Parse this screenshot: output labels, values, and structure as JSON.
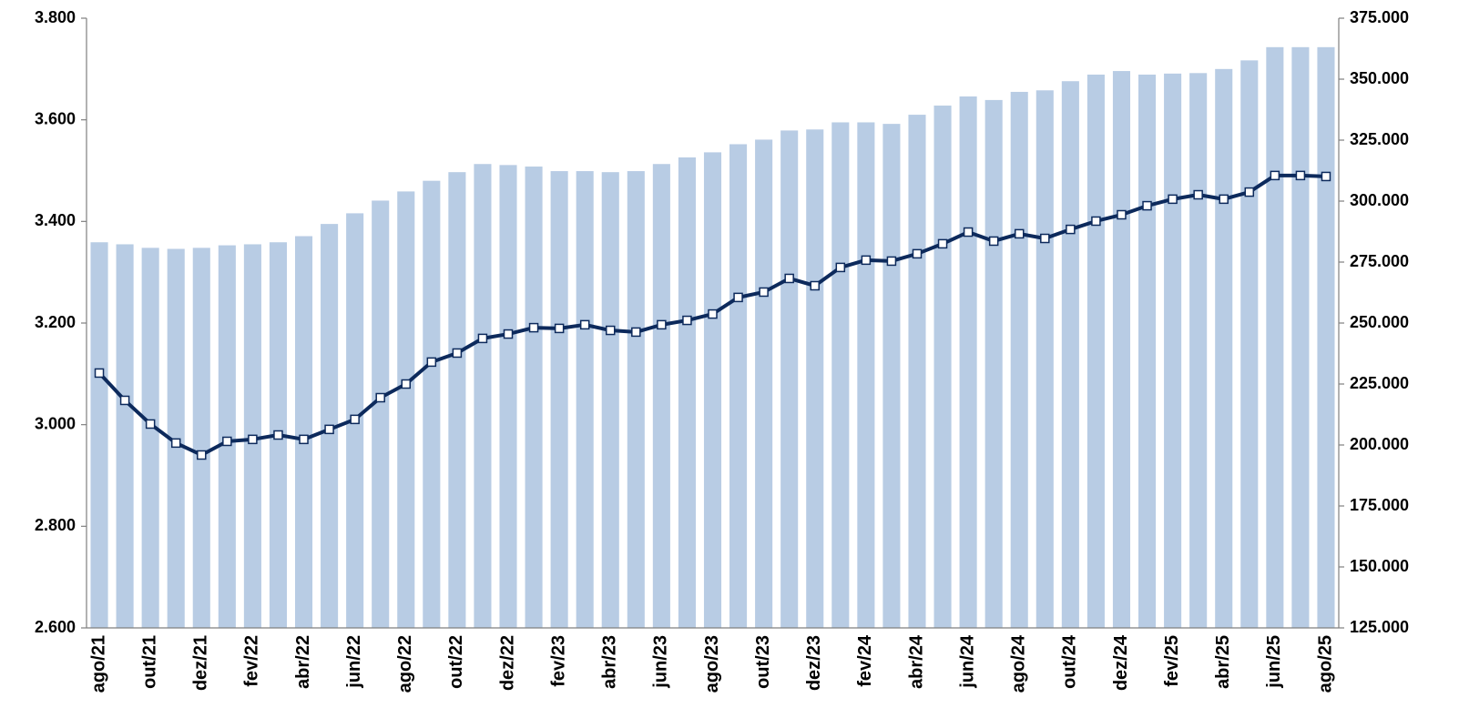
{
  "chart_data": {
    "type": "bar",
    "categories": [
      "ago/21",
      null,
      "out/21",
      null,
      "dez/21",
      null,
      "fev/22",
      null,
      "abr/22",
      null,
      "jun/22",
      null,
      "ago/22",
      null,
      "out/22",
      null,
      "dez/22",
      null,
      "fev/23",
      null,
      "abr/23",
      null,
      "jun/23",
      null,
      "ago/23",
      null,
      "out/23",
      null,
      "dez/23",
      null,
      "fev/24",
      null,
      "abr/24",
      null,
      "jun/24",
      null,
      "ago/24",
      null,
      "out/24",
      null,
      "dez/24",
      null,
      "fev/25",
      null,
      "abr/25",
      null,
      "jun/25",
      null,
      "ago/25"
    ],
    "series": [
      {
        "color": "#b8cce4",
        "values": [
          3359,
          3355,
          3348,
          3346,
          3348,
          3353,
          3355,
          3359,
          3371,
          3395,
          3416,
          3441,
          3459,
          3480,
          3497,
          3513,
          3511,
          3508,
          3499,
          3499,
          3497,
          3499,
          3513,
          3526,
          3536,
          3552,
          3561,
          3579,
          3581,
          3595,
          3595,
          3592,
          3610,
          3628,
          3646,
          3639,
          3655,
          3658,
          3676,
          3689,
          3696,
          3689,
          3691,
          3692,
          3700,
          3717,
          3743,
          3743,
          3743
        ]
      },
      {
        "type": "line",
        "axis": "y2",
        "color": "#0d2a5c",
        "values": [
          229500,
          218300,
          208600,
          200800,
          195900,
          201500,
          202300,
          204100,
          202300,
          206400,
          210500,
          219400,
          225000,
          234000,
          237700,
          243700,
          245500,
          248100,
          247800,
          249300,
          247000,
          246300,
          249300,
          251100,
          253700,
          260500,
          262700,
          268300,
          265300,
          272800,
          275800,
          275400,
          278400,
          282500,
          287300,
          283600,
          286600,
          284700,
          288400,
          291800,
          294400,
          298100,
          300800,
          302600,
          300800,
          303700,
          310500,
          310500,
          310100
        ]
      }
    ],
    "ylim": [
      2600,
      3800
    ],
    "yticks": [
      {
        "value": 2600,
        "label": "2.600"
      },
      {
        "value": 2800,
        "label": "2.800"
      },
      {
        "value": 3000,
        "label": "3.000"
      },
      {
        "value": 3200,
        "label": "3.200"
      },
      {
        "value": 3400,
        "label": "3.400"
      },
      {
        "value": 3600,
        "label": "3.600"
      },
      {
        "value": 3800,
        "label": "3.800"
      }
    ],
    "y2lim": [
      125000,
      375000
    ],
    "y2ticks": [
      {
        "value": 125000,
        "label": "125.000"
      },
      {
        "value": 150000,
        "label": "150.000"
      },
      {
        "value": 175000,
        "label": "175.000"
      },
      {
        "value": 200000,
        "label": "200.000"
      },
      {
        "value": 225000,
        "label": "225.000"
      },
      {
        "value": 250000,
        "label": "250.000"
      },
      {
        "value": 275000,
        "label": "275.000"
      },
      {
        "value": 300000,
        "label": "300.000"
      },
      {
        "value": 325000,
        "label": "325.000"
      },
      {
        "value": 350000,
        "label": "350.000"
      },
      {
        "value": 375000,
        "label": "375.000"
      }
    ]
  }
}
